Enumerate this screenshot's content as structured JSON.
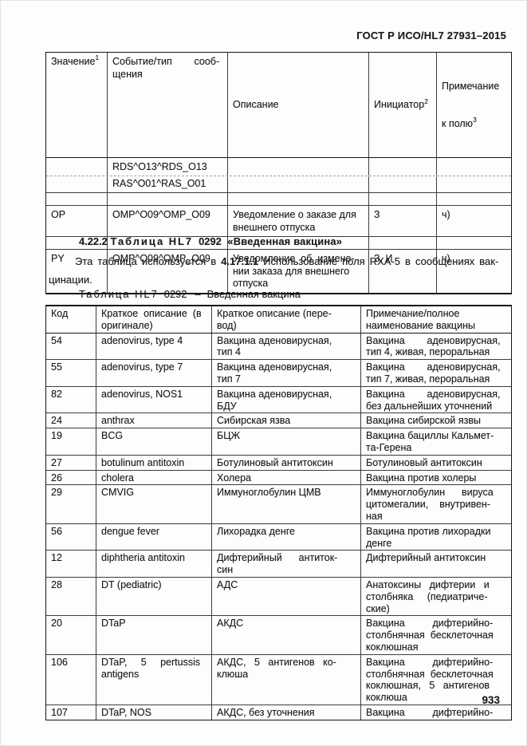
{
  "doc_header": "ГОСТ Р ИСО/HL7 27931–2015",
  "page_number": "933",
  "events_table": {
    "header": {
      "value": "Значение",
      "value_sup": "1",
      "event": "Событие/тип        сооб-\nщения",
      "description": "Описание",
      "initiator": "Инициатор",
      "initiator_sup": "2",
      "note_line1": "Примечание",
      "note_line2": "к полю",
      "note_sup": "3"
    },
    "rows": [
      {
        "value": "",
        "event": "RDS^O13^RDS_O13",
        "description": "",
        "initiator": "",
        "note": "",
        "cls": "row-split-top"
      },
      {
        "value": "",
        "event": "RAS^O01^RAS_O01",
        "description": "",
        "initiator": "",
        "note": "",
        "cls": "row-split-bottom"
      },
      {
        "value": "",
        "event": "",
        "description": "",
        "initiator": "",
        "note": "",
        "cls": "row-empty"
      },
      {
        "value": "OP",
        "event": "OMP^O09^OMP_O09",
        "description": "Уведомление о заказе для\nвнешнего отпуска",
        "initiator": "З",
        "note": "ч)",
        "cls": ""
      },
      {
        "value": "",
        "event": "",
        "description": "",
        "initiator": "",
        "note": "",
        "cls": "row-empty"
      },
      {
        "value": "PY",
        "event": "OMP^O09^OMP_O09",
        "description": "Уведомление  об  измене-\nнии заказа для внешнего\nотпуска",
        "initiator": "З, И",
        "note": "ч)",
        "cls": ""
      }
    ]
  },
  "section": {
    "number": "4.22.2",
    "heading_label": "Таблица HL7",
    "heading_code": "0292",
    "heading_title": "«Введенная вакцина»",
    "para_before": "Эта таблица используется в ",
    "para_ref": "4.17.1.1",
    "para_after": " Использование поля RXA-5 в сообщениях вак-\nцинации.",
    "caption_label": "Таблица HL7",
    "caption_code": "0292",
    "caption_dash": "–",
    "caption_title": "Введенная вакцина"
  },
  "vaccine_table": {
    "header": {
      "code": "Код",
      "en": "Краткое  описание  (в\nоригинале)",
      "ru_short": "Краткое описание (пере-\nвод)",
      "ru_full": "Примечание/полное\nнаименование вакцины"
    },
    "rows": [
      {
        "code": "54",
        "en": "adenovirus, type 4",
        "ru_short": "Вакцина аденовирусная,\nтип 4",
        "ru_full": "Вакцина        аденовирусная,\nтип 4, живая, пероральная",
        "cls": ""
      },
      {
        "code": "55",
        "en": "adenovirus, type 7",
        "ru_short": "Вакцина аденовирусная,\nтип 7",
        "ru_full": "Вакцина        аденовирусная,\nтип 7, живая, пероральная",
        "cls": ""
      },
      {
        "code": "82",
        "en": "adenovirus, NOS1",
        "ru_short": "Вакцина аденовирусная,\nБДУ",
        "ru_full": "Вакцина        аденовирусная,\nбез дальнейших уточнений",
        "cls": ""
      },
      {
        "code": "24",
        "en": "anthrax",
        "ru_short": "Сибирская язва",
        "ru_full": "Вакцина сибирской язвы",
        "cls": ""
      },
      {
        "code": "19",
        "en": "BCG",
        "ru_short": "БЦЖ",
        "ru_full": "Вакцина бациллы Кальмет-\nта-Герена",
        "cls": ""
      },
      {
        "code": "27",
        "en": "botulinum antitoxin",
        "ru_short": "Ботулиновый антитоксин",
        "ru_full": "Ботулиновый антитоксин",
        "cls": ""
      },
      {
        "code": "26",
        "en": "cholera",
        "ru_short": "Холера",
        "ru_full": "Вакцина против холеры",
        "cls": ""
      },
      {
        "code": "29",
        "en": "CMVIG",
        "ru_short": "Иммуноглобулин ЦМВ",
        "ru_full": "Иммуноглобулин      вируса\nцитомегалии,    внутривен-\nная",
        "cls": ""
      },
      {
        "code": "56",
        "en": "dengue fever",
        "ru_short": "Лихорадка денге",
        "ru_full": "Вакцина против лихорадки\nденге",
        "cls": ""
      },
      {
        "code": "12",
        "en": "diphtheria antitoxin",
        "ru_short": "Дифтерийный      антиток-\nсин",
        "ru_full": "Дифтерийный антитоксин",
        "cls": ""
      },
      {
        "code": "28",
        "en": "DT (pediatric)",
        "ru_short": "АДС",
        "ru_full": "Анатоксины   дифтерии   и\nстолбняка     (педиатриче-\nские)",
        "cls": ""
      },
      {
        "code": "20",
        "en": "DTaP",
        "ru_short": "АКДС",
        "ru_full": "Вакцина          дифтерийно-\nстолбнячная  бесклеточная\nкоклюшная",
        "cls": ""
      },
      {
        "code": "106",
        "en": "DTaP,     5     pertussis\nantigens",
        "ru_short": "АКДС,   5   антигенов   ко-\nклюша",
        "ru_full": "Вакцина          дифтерийно-\nстолбнячная  бесклеточная\nкоклюшная,   5   антигенов\nкоклюша",
        "cls": ""
      },
      {
        "code": "107",
        "en": "DTaP, NOS",
        "ru_short": "АКДС, без уточнения",
        "ru_full": "Вакцина          дифтерийно-",
        "cls": ""
      }
    ]
  }
}
